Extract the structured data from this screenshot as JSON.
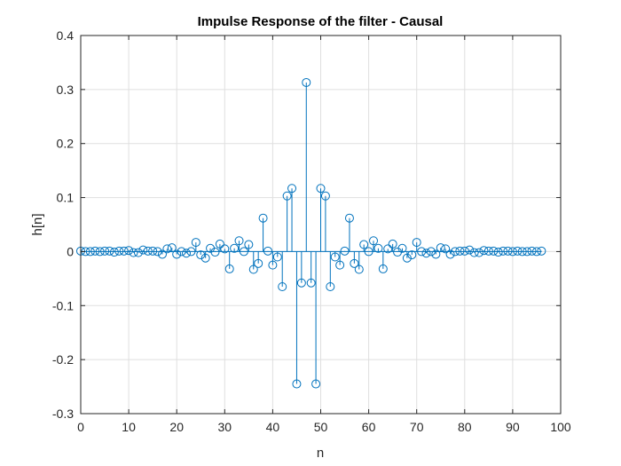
{
  "chart_data": {
    "type": "stem",
    "title": "Impulse Response of the filter - Causal",
    "xlabel": "n",
    "ylabel": "h[n]",
    "xlim": [
      0,
      100
    ],
    "ylim": [
      -0.3,
      0.4
    ],
    "xticks": [
      "0",
      "10",
      "20",
      "30",
      "40",
      "50",
      "60",
      "70",
      "80",
      "90",
      "100"
    ],
    "yticks": [
      "0.4",
      "0.3",
      "0.2",
      "0.1",
      "0",
      "-0.1",
      "-0.2",
      "-0.3"
    ],
    "grid": true,
    "series_color": "#0072BD",
    "x": [
      0,
      1,
      2,
      3,
      4,
      5,
      6,
      7,
      8,
      9,
      10,
      11,
      12,
      13,
      14,
      15,
      16,
      17,
      18,
      19,
      20,
      21,
      22,
      23,
      24,
      25,
      26,
      27,
      28,
      29,
      30,
      31,
      32,
      33,
      34,
      35,
      36,
      37,
      38,
      39,
      40,
      41,
      42,
      43,
      44,
      45,
      46,
      47,
      48,
      49,
      50,
      51,
      52,
      53,
      54,
      55,
      56,
      57,
      58,
      59,
      60,
      61,
      62,
      63,
      64,
      65,
      66,
      67,
      68,
      69,
      70,
      71,
      72,
      73,
      74,
      75,
      76,
      77,
      78,
      79,
      80,
      81,
      82,
      83,
      84,
      85,
      86,
      87,
      88,
      89,
      90,
      91,
      92,
      93,
      94,
      95,
      96
    ],
    "values": [
      0.001,
      0.0,
      0.0,
      0.001,
      0.0,
      0.001,
      0.001,
      -0.001,
      0.001,
      0.001,
      0.002,
      -0.002,
      -0.002,
      0.003,
      0.001,
      0.001,
      0.0,
      -0.005,
      0.005,
      0.007,
      -0.005,
      0.0,
      -0.003,
      0.0,
      0.017,
      -0.006,
      -0.012,
      0.006,
      -0.001,
      0.014,
      0.005,
      -0.032,
      0.006,
      0.02,
      0.0,
      0.013,
      -0.033,
      -0.022,
      0.062,
      0.001,
      -0.025,
      -0.01,
      -0.065,
      0.103,
      0.117,
      -0.245,
      -0.058,
      0.313,
      -0.058,
      -0.245,
      0.117,
      0.103,
      -0.065,
      -0.01,
      -0.025,
      0.001,
      0.062,
      -0.022,
      -0.033,
      0.013,
      0.0,
      0.02,
      0.006,
      -0.032,
      0.005,
      0.014,
      -0.001,
      0.006,
      -0.012,
      -0.006,
      0.017,
      0.0,
      -0.003,
      0.0,
      -0.005,
      0.007,
      0.005,
      -0.005,
      0.0,
      0.001,
      0.001,
      0.003,
      -0.002,
      -0.002,
      0.002,
      0.001,
      0.001,
      -0.001,
      0.001,
      0.001,
      0.0,
      0.001,
      0.0,
      0.0,
      0.001,
      0.0,
      0.001
    ]
  }
}
